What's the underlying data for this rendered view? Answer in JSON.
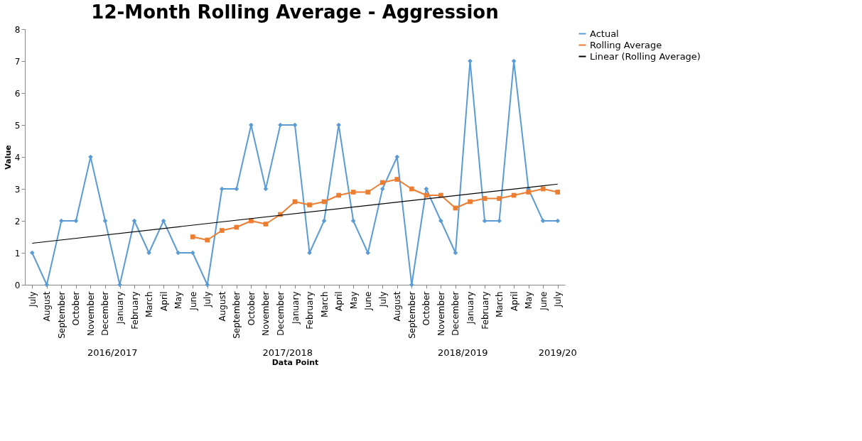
{
  "chart_data": {
    "type": "line",
    "title": "12-Month Rolling Average - Aggression",
    "xlabel": "Data Point",
    "ylabel": "Value",
    "categories": [
      "July",
      "August",
      "September",
      "October",
      "November",
      "December",
      "January",
      "February",
      "March",
      "April",
      "May",
      "June",
      "July",
      "August",
      "September",
      "October",
      "November",
      "December",
      "January",
      "February",
      "March",
      "April",
      "May",
      "June",
      "July",
      "August",
      "September",
      "October",
      "November",
      "December",
      "January",
      "February",
      "March",
      "April",
      "May",
      "June",
      "July"
    ],
    "series": [
      {
        "name": "Actual",
        "color": "#5b9bd5",
        "marker": "diamond",
        "values": [
          1,
          0,
          2,
          2,
          4,
          2,
          0,
          2,
          1,
          2,
          1,
          1,
          0,
          3,
          3,
          5,
          3,
          5,
          5,
          1,
          2,
          5,
          2,
          1,
          3,
          4,
          0,
          3,
          2,
          1,
          7,
          2,
          2,
          7,
          3,
          2,
          2
        ]
      },
      {
        "name": "Rolling Average",
        "color": "#ed7d31",
        "marker": "square",
        "values": [
          null,
          null,
          null,
          null,
          null,
          null,
          null,
          null,
          null,
          null,
          null,
          1.5,
          1.4,
          1.7,
          1.8,
          2.0,
          1.9,
          2.2,
          2.6,
          2.5,
          2.6,
          2.8,
          2.9,
          2.9,
          3.2,
          3.3,
          3.0,
          2.8,
          2.8,
          2.4,
          2.6,
          2.7,
          2.7,
          2.8,
          2.9,
          3.0,
          2.9
        ]
      },
      {
        "name": "Linear (Rolling Average)",
        "color": "#000000",
        "marker": "none",
        "values": [
          1.3,
          null,
          null,
          null,
          null,
          null,
          null,
          null,
          null,
          null,
          null,
          null,
          null,
          null,
          null,
          null,
          null,
          null,
          null,
          null,
          null,
          null,
          null,
          null,
          null,
          null,
          null,
          null,
          null,
          null,
          null,
          null,
          null,
          null,
          null,
          null,
          3.15
        ]
      }
    ],
    "ylim": [
      0,
      8
    ],
    "yticks": [
      0,
      1,
      2,
      3,
      4,
      5,
      6,
      7,
      8
    ],
    "grid": false,
    "legend": "right",
    "annotations": [
      "2016/2017",
      "2017/2018",
      "2018/2019",
      "2019/20"
    ]
  }
}
